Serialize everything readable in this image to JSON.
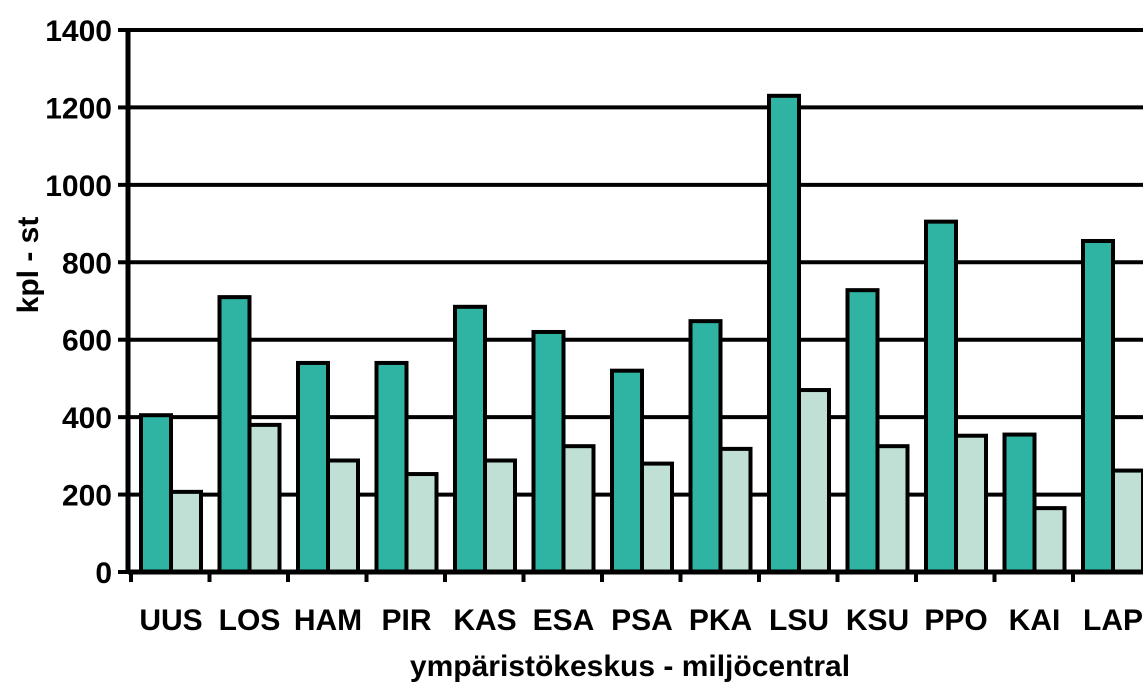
{
  "chart_data": {
    "type": "bar",
    "xlabel": "ympäristökeskus - miljöcentral",
    "ylabel": "kpl - st",
    "ylim": [
      0,
      1400
    ],
    "yticks": [
      0,
      200,
      400,
      600,
      800,
      1000,
      1200,
      1400
    ],
    "grid": true,
    "categories": [
      "UUS",
      "LOS",
      "HAM",
      "PIR",
      "KAS",
      "ESA",
      "PSA",
      "PKA",
      "LSU",
      "KSU",
      "PPO",
      "KAI",
      "LAP"
    ],
    "series": [
      {
        "values": [
          405,
          710,
          540,
          540,
          685,
          620,
          520,
          648,
          1230,
          728,
          905,
          355,
          855
        ],
        "color": "#2fb3a2"
      },
      {
        "values": [
          207,
          380,
          288,
          253,
          288,
          325,
          280,
          318,
          470,
          325,
          352,
          165,
          262
        ],
        "color": "#c0e0d6"
      }
    ]
  }
}
